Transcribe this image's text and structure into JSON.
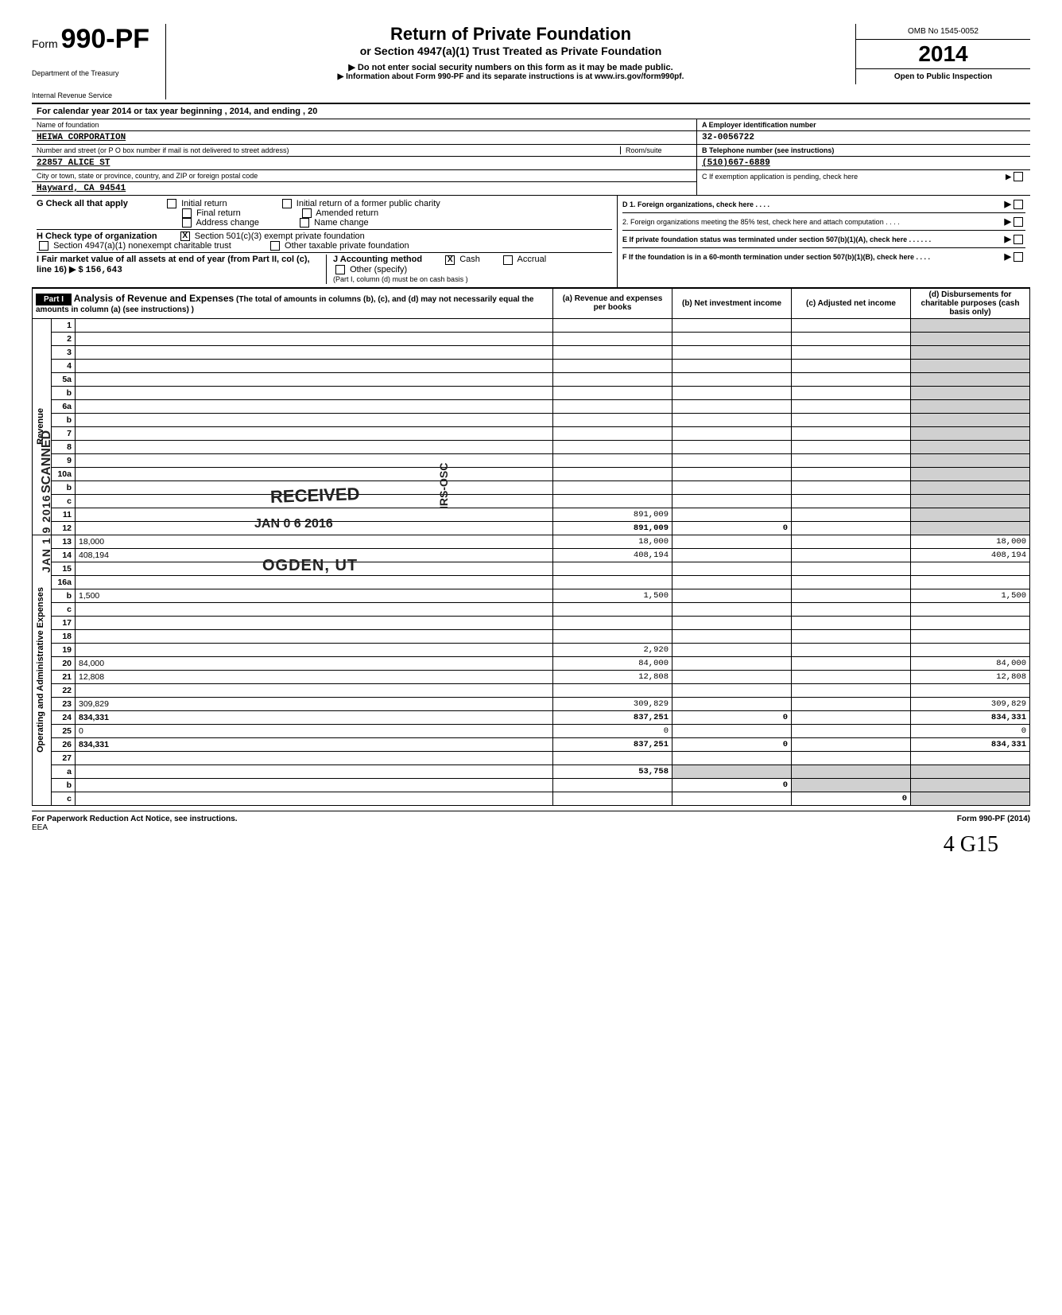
{
  "header": {
    "form_prefix": "Form",
    "form_number": "990-PF",
    "dept1": "Department of the Treasury",
    "dept2": "Internal Revenue Service",
    "title1": "Return of Private Foundation",
    "title2": "or Section 4947(a)(1) Trust Treated as Private Foundation",
    "title3": "▶ Do not enter social security numbers on this form as it may be made public.",
    "title4": "▶ Information about Form 990-PF and its separate instructions is at www.irs.gov/form990pf.",
    "omb": "OMB No 1545-0052",
    "year": "2014",
    "open": "Open to Public Inspection"
  },
  "cal_year": "For calendar year 2014 or tax year beginning                                                              , 2014, and ending                                                        , 20",
  "id": {
    "name_label": "Name of foundation",
    "name": "HEIWA CORPORATION",
    "addr_label": "Number and street (or P O box number if mail is not delivered to street address)",
    "room_label": "Room/suite",
    "addr": "22857 ALICE ST",
    "city_label": "City or town, state or province, country, and ZIP or foreign postal code",
    "city": "Hayward, CA 94541",
    "a_label": "A Employer identification number",
    "a_val": "32-0056722",
    "b_label": "B Telephone number (see instructions)",
    "b_val": "(510)667-6889",
    "c_label": "C  If exemption application is pending, check here"
  },
  "checks": {
    "g": "G  Check all that apply",
    "g_opts": [
      "Initial return",
      "Final return",
      "Address change",
      "Initial return of a former public charity",
      "Amended return",
      "Name change"
    ],
    "h": "H  Check type of organization",
    "h1": "Section 501(c)(3) exempt private foundation",
    "h2": "Section 4947(a)(1) nonexempt charitable trust",
    "h3": "Other taxable private foundation",
    "i": "I   Fair market value of all assets at end of year (from Part II, col (c), line 16) ▶ $",
    "i_val": "156,643",
    "j": "J   Accounting method",
    "j1": "Cash",
    "j2": "Accrual",
    "j3": "Other (specify)",
    "j_note": "(Part I, column (d) must be on cash basis )",
    "d": "D  1. Foreign organizations, check here  . . . .",
    "d2": "2. Foreign organizations meeting the 85% test, check here and attach computation   . . . .",
    "e": "E  If private foundation status was terminated under section 507(b)(1)(A), check here   . . . . . .",
    "f": "F  If the foundation is in a 60-month termination under section 507(b)(1)(B), check here  . . . ."
  },
  "part1": {
    "label": "Part I",
    "title": "Analysis of Revenue and Expenses",
    "desc": "(The total of amounts in columns (b), (c), and (d) may not necessarily equal the amounts in column (a) (see instructions) )",
    "col_a": "(a) Revenue and expenses per books",
    "col_b": "(b) Net investment income",
    "col_c": "(c) Adjusted net income",
    "col_d": "(d) Disbursements for charitable purposes (cash basis only)"
  },
  "side_labels": {
    "revenue": "Revenue",
    "opex": "Operating and Administrative Expenses"
  },
  "rows": [
    {
      "n": "1",
      "d": "",
      "a": "",
      "b": "",
      "c": ""
    },
    {
      "n": "2",
      "d": "",
      "a": "",
      "b": "",
      "c": ""
    },
    {
      "n": "3",
      "d": "",
      "a": "",
      "b": "",
      "c": ""
    },
    {
      "n": "4",
      "d": "",
      "a": "",
      "b": "",
      "c": ""
    },
    {
      "n": "5a",
      "d": "",
      "a": "",
      "b": "",
      "c": ""
    },
    {
      "n": "b",
      "d": "",
      "a": "",
      "b": "",
      "c": ""
    },
    {
      "n": "6a",
      "d": "",
      "a": "",
      "b": "",
      "c": ""
    },
    {
      "n": "b",
      "d": "",
      "a": "",
      "b": "",
      "c": ""
    },
    {
      "n": "7",
      "d": "",
      "a": "",
      "b": "",
      "c": ""
    },
    {
      "n": "8",
      "d": "",
      "a": "",
      "b": "",
      "c": ""
    },
    {
      "n": "9",
      "d": "",
      "a": "",
      "b": "",
      "c": ""
    },
    {
      "n": "10a",
      "d": "",
      "a": "",
      "b": "",
      "c": ""
    },
    {
      "n": "b",
      "d": "",
      "a": "",
      "b": "",
      "c": ""
    },
    {
      "n": "c",
      "d": "",
      "a": "",
      "b": "",
      "c": ""
    },
    {
      "n": "11",
      "d": "",
      "a": "891,009",
      "b": "",
      "c": ""
    },
    {
      "n": "12",
      "d": "",
      "a": "891,009",
      "b": "0",
      "c": "",
      "bold": true
    },
    {
      "n": "13",
      "d": "18,000",
      "a": "18,000",
      "b": "",
      "c": ""
    },
    {
      "n": "14",
      "d": "408,194",
      "a": "408,194",
      "b": "",
      "c": ""
    },
    {
      "n": "15",
      "d": "",
      "a": "",
      "b": "",
      "c": ""
    },
    {
      "n": "16a",
      "d": "",
      "a": "",
      "b": "",
      "c": ""
    },
    {
      "n": "b",
      "d": "1,500",
      "a": "1,500",
      "b": "",
      "c": ""
    },
    {
      "n": "c",
      "d": "",
      "a": "",
      "b": "",
      "c": ""
    },
    {
      "n": "17",
      "d": "",
      "a": "",
      "b": "",
      "c": ""
    },
    {
      "n": "18",
      "d": "",
      "a": "",
      "b": "",
      "c": ""
    },
    {
      "n": "19",
      "d": "",
      "a": "2,920",
      "b": "",
      "c": ""
    },
    {
      "n": "20",
      "d": "84,000",
      "a": "84,000",
      "b": "",
      "c": ""
    },
    {
      "n": "21",
      "d": "12,808",
      "a": "12,808",
      "b": "",
      "c": ""
    },
    {
      "n": "22",
      "d": "",
      "a": "",
      "b": "",
      "c": ""
    },
    {
      "n": "23",
      "d": "309,829",
      "a": "309,829",
      "b": "",
      "c": ""
    },
    {
      "n": "24",
      "d": "834,331",
      "a": "837,251",
      "b": "0",
      "c": "",
      "bold": true
    },
    {
      "n": "25",
      "d": "0",
      "a": "0",
      "b": "",
      "c": ""
    },
    {
      "n": "26",
      "d": "834,331",
      "a": "837,251",
      "b": "0",
      "c": "",
      "bold": true
    },
    {
      "n": "27",
      "d": "",
      "a": "",
      "b": "",
      "c": ""
    },
    {
      "n": "a",
      "d": "",
      "a": "53,758",
      "b": "",
      "c": "",
      "bold": true
    },
    {
      "n": "b",
      "d": "",
      "a": "",
      "b": "0",
      "c": "",
      "bold": true
    },
    {
      "n": "c",
      "d": "",
      "a": "",
      "b": "",
      "c": "0",
      "bold": true
    }
  ],
  "footer": {
    "left": "For Paperwork Reduction Act Notice, see instructions.",
    "mid": "EEA",
    "right": "Form 990-PF (2014)"
  },
  "stamps": {
    "received": "RECEIVED",
    "date": "JAN 0 6 2016",
    "ogden": "OGDEN, UT",
    "scanned": "SCANNED",
    "jandate": "JAN 1 9 2016",
    "irs": "IRS-OSC"
  },
  "handwrite": "4 G15"
}
